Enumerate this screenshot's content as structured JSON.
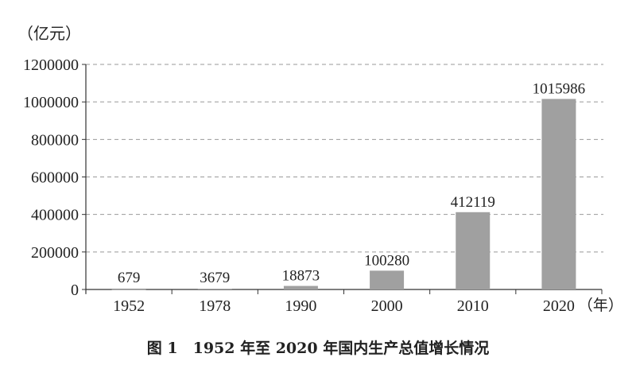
{
  "chart_data": {
    "type": "bar",
    "title": "图 1　1952 年至 2020 年国内生产总值增长情况",
    "ylabel": "（亿元）",
    "xlabel": "（年）",
    "categories": [
      "1952",
      "1978",
      "1990",
      "2000",
      "2010",
      "2020"
    ],
    "values": [
      679,
      3679,
      18873,
      100280,
      412119,
      1015986
    ],
    "data_labels": [
      "679",
      "3679",
      "18873",
      "100280",
      "412119",
      "1015986"
    ],
    "ylim": [
      0,
      1200000
    ],
    "yticks": [
      "0",
      "200000",
      "400000",
      "600000",
      "800000",
      "1000000",
      "1200000"
    ],
    "grid": true,
    "grid_style": "dashed",
    "bar_color": "#a0a0a0"
  }
}
